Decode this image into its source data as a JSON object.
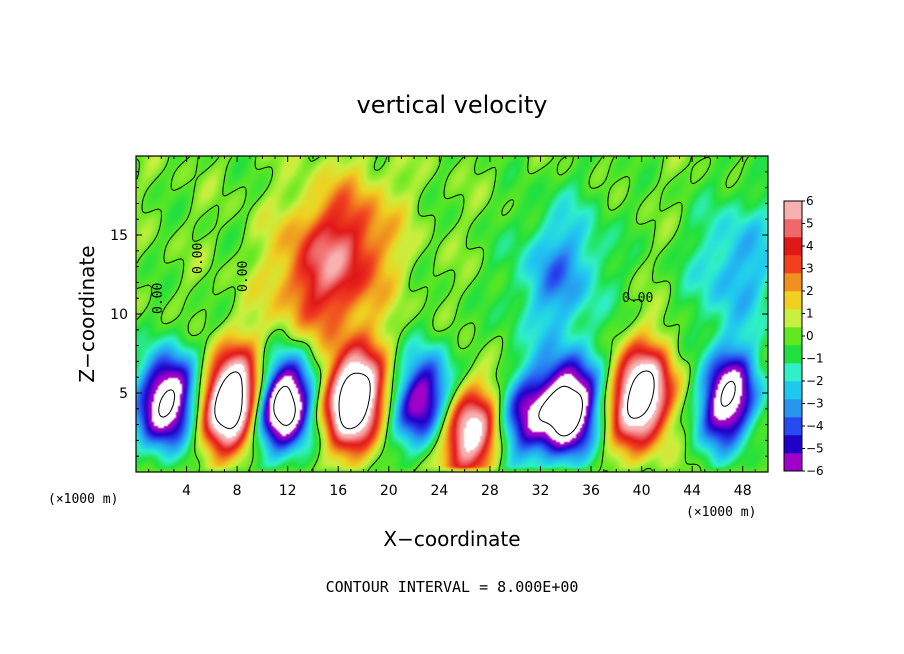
{
  "chart_data": {
    "type": "heatmap",
    "title": "vertical velocity",
    "xlabel": "X−coordinate",
    "ylabel": "Z−coordinate",
    "x_unit": "(×1000 m)",
    "y_unit": "(×1000 m)",
    "xlim": [
      0,
      50
    ],
    "ylim": [
      0,
      20
    ],
    "x_ticks": [
      4,
      8,
      12,
      16,
      20,
      24,
      28,
      32,
      36,
      40,
      44,
      48
    ],
    "y_ticks": [
      5,
      10,
      15
    ],
    "x_tick_labels": [
      "4",
      "8",
      "12",
      "16",
      "20",
      "24",
      "28",
      "32",
      "36",
      "40",
      "44",
      "48"
    ],
    "y_tick_labels": [
      "5",
      "10",
      "15"
    ],
    "colorbar": {
      "min": -6,
      "max": 6,
      "labels": [
        "6",
        "5",
        "4",
        "3",
        "2",
        "1",
        "0",
        "−1",
        "−2",
        "−3",
        "−4",
        "−5",
        "−6"
      ],
      "colors": [
        "#a000c8",
        "#1e00c8",
        "#2848f0",
        "#2896f0",
        "#20c8f0",
        "#30f0c8",
        "#20e040",
        "#60e820",
        "#c8f040",
        "#f0d020",
        "#f09020",
        "#f04020",
        "#e01818",
        "#f06868",
        "#f8b0b0"
      ]
    },
    "contour_labels": [
      "0.00",
      "0.00",
      "0.00",
      "0.00"
    ],
    "footer": "CONTOUR INTERVAL = 8.000E+00",
    "features": [
      {
        "x": 2.5,
        "z": 4.5,
        "w": -9
      },
      {
        "x": 7.5,
        "z": 4.5,
        "w": 11
      },
      {
        "x": 11.8,
        "z": 4.3,
        "w": -10
      },
      {
        "x": 17.2,
        "z": 4.6,
        "w": 11
      },
      {
        "x": 17.0,
        "z": 14.0,
        "w": 3.5
      },
      {
        "x": 14.0,
        "z": 12.5,
        "w": 3
      },
      {
        "x": 22.8,
        "z": 4.5,
        "w": -7
      },
      {
        "x": 26.4,
        "z": 2.5,
        "w": 8
      },
      {
        "x": 30.5,
        "z": 3.5,
        "w": -5
      },
      {
        "x": 34.2,
        "z": 4.0,
        "w": -10
      },
      {
        "x": 33.5,
        "z": 12.5,
        "w": -3.5
      },
      {
        "x": 40.0,
        "z": 4.8,
        "w": 10
      },
      {
        "x": 46.8,
        "z": 4.6,
        "w": -8
      },
      {
        "x": 47.5,
        "z": 13.0,
        "w": -3
      }
    ]
  }
}
